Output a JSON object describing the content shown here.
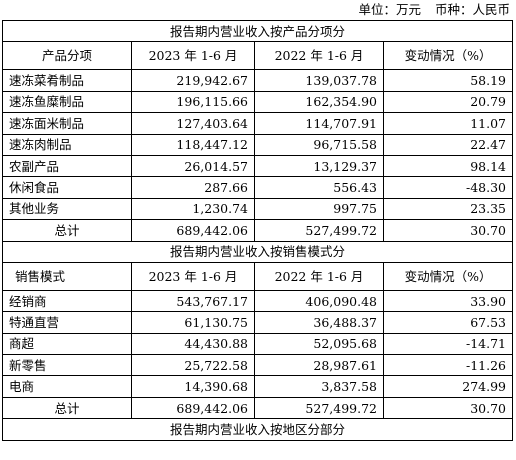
{
  "unit": {
    "unit_label": "单位：万元",
    "currency_label": "币种：人民币"
  },
  "section_product": {
    "title": "报告期内营业收入按产品分项分",
    "headers": [
      "产品分项",
      "2023 年 1-6 月",
      "2022 年 1-6 月",
      "变动情况（%）"
    ],
    "rows": [
      [
        "速冻菜肴制品",
        "219,942.67",
        "139,037.78",
        "58.19"
      ],
      [
        "速冻鱼糜制品",
        "196,115.66",
        "162,354.90",
        "20.79"
      ],
      [
        "速冻面米制品",
        "127,403.64",
        "114,707.91",
        "11.07"
      ],
      [
        "速冻肉制品",
        "118,447.12",
        "96,715.58",
        "22.47"
      ],
      [
        "农副产品",
        "26,014.57",
        "13,129.37",
        "98.14"
      ],
      [
        "休闲食品",
        "287.66",
        "556.43",
        "-48.30"
      ],
      [
        "其他业务",
        "1,230.74",
        "997.75",
        "23.35"
      ]
    ],
    "total": [
      "总计",
      "689,442.06",
      "527,499.72",
      "30.70"
    ]
  },
  "section_channel": {
    "title": "报告期内营业收入按销售模式分",
    "headers": [
      "销售模式",
      "2023 年 1-6 月",
      "2022 年 1-6 月",
      "变动情况（%）"
    ],
    "rows": [
      [
        "经销商",
        "543,767.17",
        "406,090.48",
        "33.90"
      ],
      [
        "特通直营",
        "61,130.75",
        "36,488.37",
        "67.53"
      ],
      [
        "商超",
        "44,430.88",
        "52,095.68",
        "-14.71"
      ],
      [
        "新零售",
        "25,722.58",
        "28,987.61",
        "-11.26"
      ],
      [
        "电商",
        "14,390.68",
        "3,837.58",
        "274.99"
      ]
    ],
    "total": [
      "总计",
      "689,442.06",
      "527,499.72",
      "30.70"
    ]
  },
  "section_region": {
    "title": "报告期内营业收入按地区分部分"
  },
  "chart_data": {
    "type": "table",
    "tables": [
      {
        "title": "报告期内营业收入按产品分项分",
        "columns": [
          "产品分项",
          "2023 年 1-6 月",
          "2022 年 1-6 月",
          "变动情况（%）"
        ],
        "rows": [
          [
            "速冻菜肴制品",
            219942.67,
            139037.78,
            58.19
          ],
          [
            "速冻鱼糜制品",
            196115.66,
            162354.9,
            20.79
          ],
          [
            "速冻面米制品",
            127403.64,
            114707.91,
            11.07
          ],
          [
            "速冻肉制品",
            118447.12,
            96715.58,
            22.47
          ],
          [
            "农副产品",
            26014.57,
            13129.37,
            98.14
          ],
          [
            "休闲食品",
            287.66,
            556.43,
            -48.3
          ],
          [
            "其他业务",
            1230.74,
            997.75,
            23.35
          ],
          [
            "总计",
            689442.06,
            527499.72,
            30.7
          ]
        ]
      },
      {
        "title": "报告期内营业收入按销售模式分",
        "columns": [
          "销售模式",
          "2023 年 1-6 月",
          "2022 年 1-6 月",
          "变动情况（%）"
        ],
        "rows": [
          [
            "经销商",
            543767.17,
            406090.48,
            33.9
          ],
          [
            "特通直营",
            61130.75,
            36488.37,
            67.53
          ],
          [
            "商超",
            44430.88,
            52095.68,
            -14.71
          ],
          [
            "新零售",
            25722.58,
            28987.61,
            -11.26
          ],
          [
            "电商",
            14390.68,
            3837.58,
            274.99
          ],
          [
            "总计",
            689442.06,
            527499.72,
            30.7
          ]
        ]
      },
      {
        "title": "报告期内营业收入按地区分部分",
        "columns": [],
        "rows": []
      }
    ]
  }
}
